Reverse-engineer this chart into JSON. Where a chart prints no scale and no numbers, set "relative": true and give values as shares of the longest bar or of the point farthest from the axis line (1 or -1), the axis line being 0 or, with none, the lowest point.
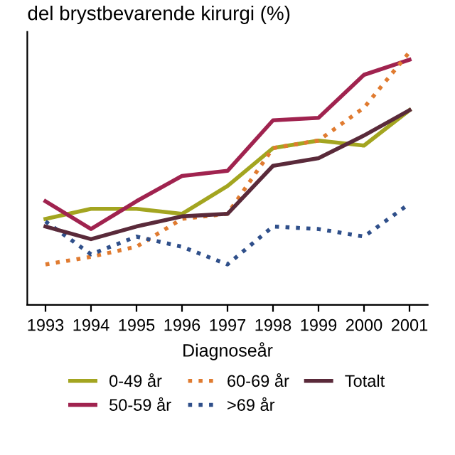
{
  "chart_data": {
    "type": "line",
    "title": "del brystbevarende kirurgi (%)",
    "xlabel": "Diagnoseår",
    "relative": true,
    "legend": "bottom",
    "categories": [
      "1993",
      "1994",
      "1995",
      "1996",
      "1997",
      "1998",
      "1999",
      "2000",
      "2001"
    ],
    "series": [
      {
        "name": "0-49 år",
        "color": "#a3a520",
        "line_style": "solid",
        "values": [
          0.34,
          0.38,
          0.38,
          0.36,
          0.47,
          0.62,
          0.65,
          0.63,
          0.77
        ]
      },
      {
        "name": "50-59 år",
        "color": "#a0234f",
        "line_style": "solid",
        "values": [
          0.41,
          0.3,
          0.41,
          0.51,
          0.53,
          0.73,
          0.74,
          0.91,
          0.97
        ]
      },
      {
        "name": "60-69 år",
        "color": "#e07b30",
        "line_style": "dotted",
        "values": [
          0.16,
          0.19,
          0.23,
          0.34,
          0.36,
          0.62,
          0.65,
          0.78,
          1.0
        ]
      },
      {
        "name": ">69 år",
        "color": "#2f4f8a",
        "line_style": "dotted",
        "values": [
          0.33,
          0.2,
          0.27,
          0.23,
          0.16,
          0.31,
          0.3,
          0.27,
          0.4
        ]
      },
      {
        "name": "Totalt",
        "color": "#5a2a3a",
        "line_style": "solid",
        "values": [
          0.31,
          0.26,
          0.31,
          0.35,
          0.36,
          0.55,
          0.58,
          0.67,
          0.77
        ]
      }
    ]
  }
}
